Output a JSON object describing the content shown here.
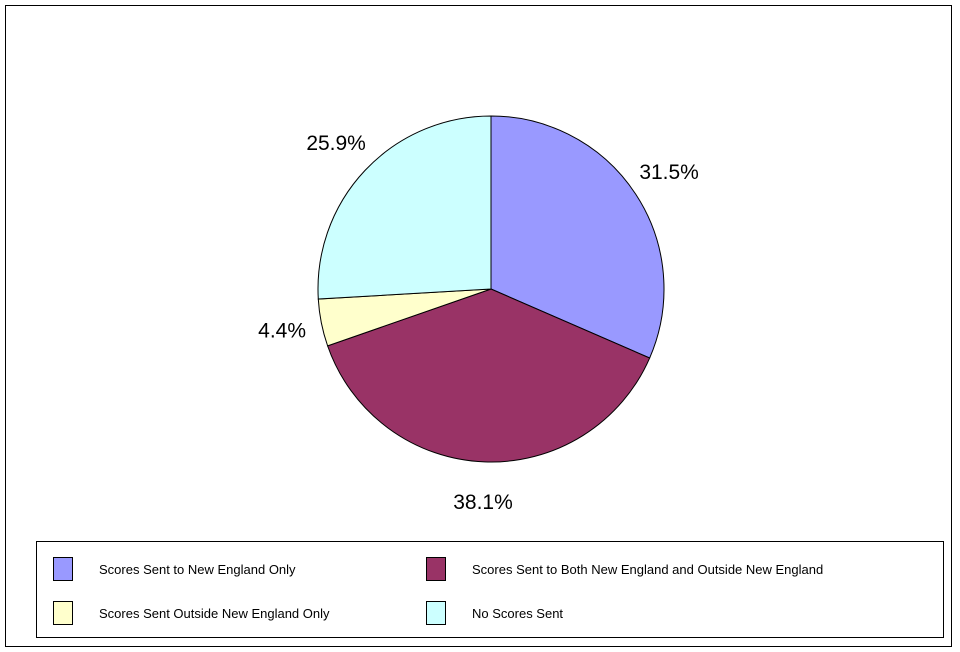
{
  "chart_data": {
    "type": "pie",
    "slices": [
      {
        "name": "Scores Sent to New England Only",
        "value": 31.5,
        "label": "31.5%",
        "color": "#9999ff"
      },
      {
        "name": "Scores Sent to Both New England and Outside New England",
        "value": 38.1,
        "label": "38.1%",
        "color": "#993366"
      },
      {
        "name": "Scores Sent Outside New England Only",
        "value": 4.4,
        "label": "4.4%",
        "color": "#ffffcc"
      },
      {
        "name": "No Scores Sent",
        "value": 25.9,
        "label": "25.9%",
        "color": "#ccffff"
      }
    ],
    "legend_position": "bottom"
  },
  "legend": {
    "items": [
      {
        "label": "Scores Sent to New England Only",
        "color": "#9999ff"
      },
      {
        "label": "Scores Sent to Both New England and Outside New England",
        "color": "#993366"
      },
      {
        "label": "Scores Sent Outside New England Only",
        "color": "#ffffcc"
      },
      {
        "label": "No Scores Sent",
        "color": "#ccffff"
      }
    ]
  }
}
